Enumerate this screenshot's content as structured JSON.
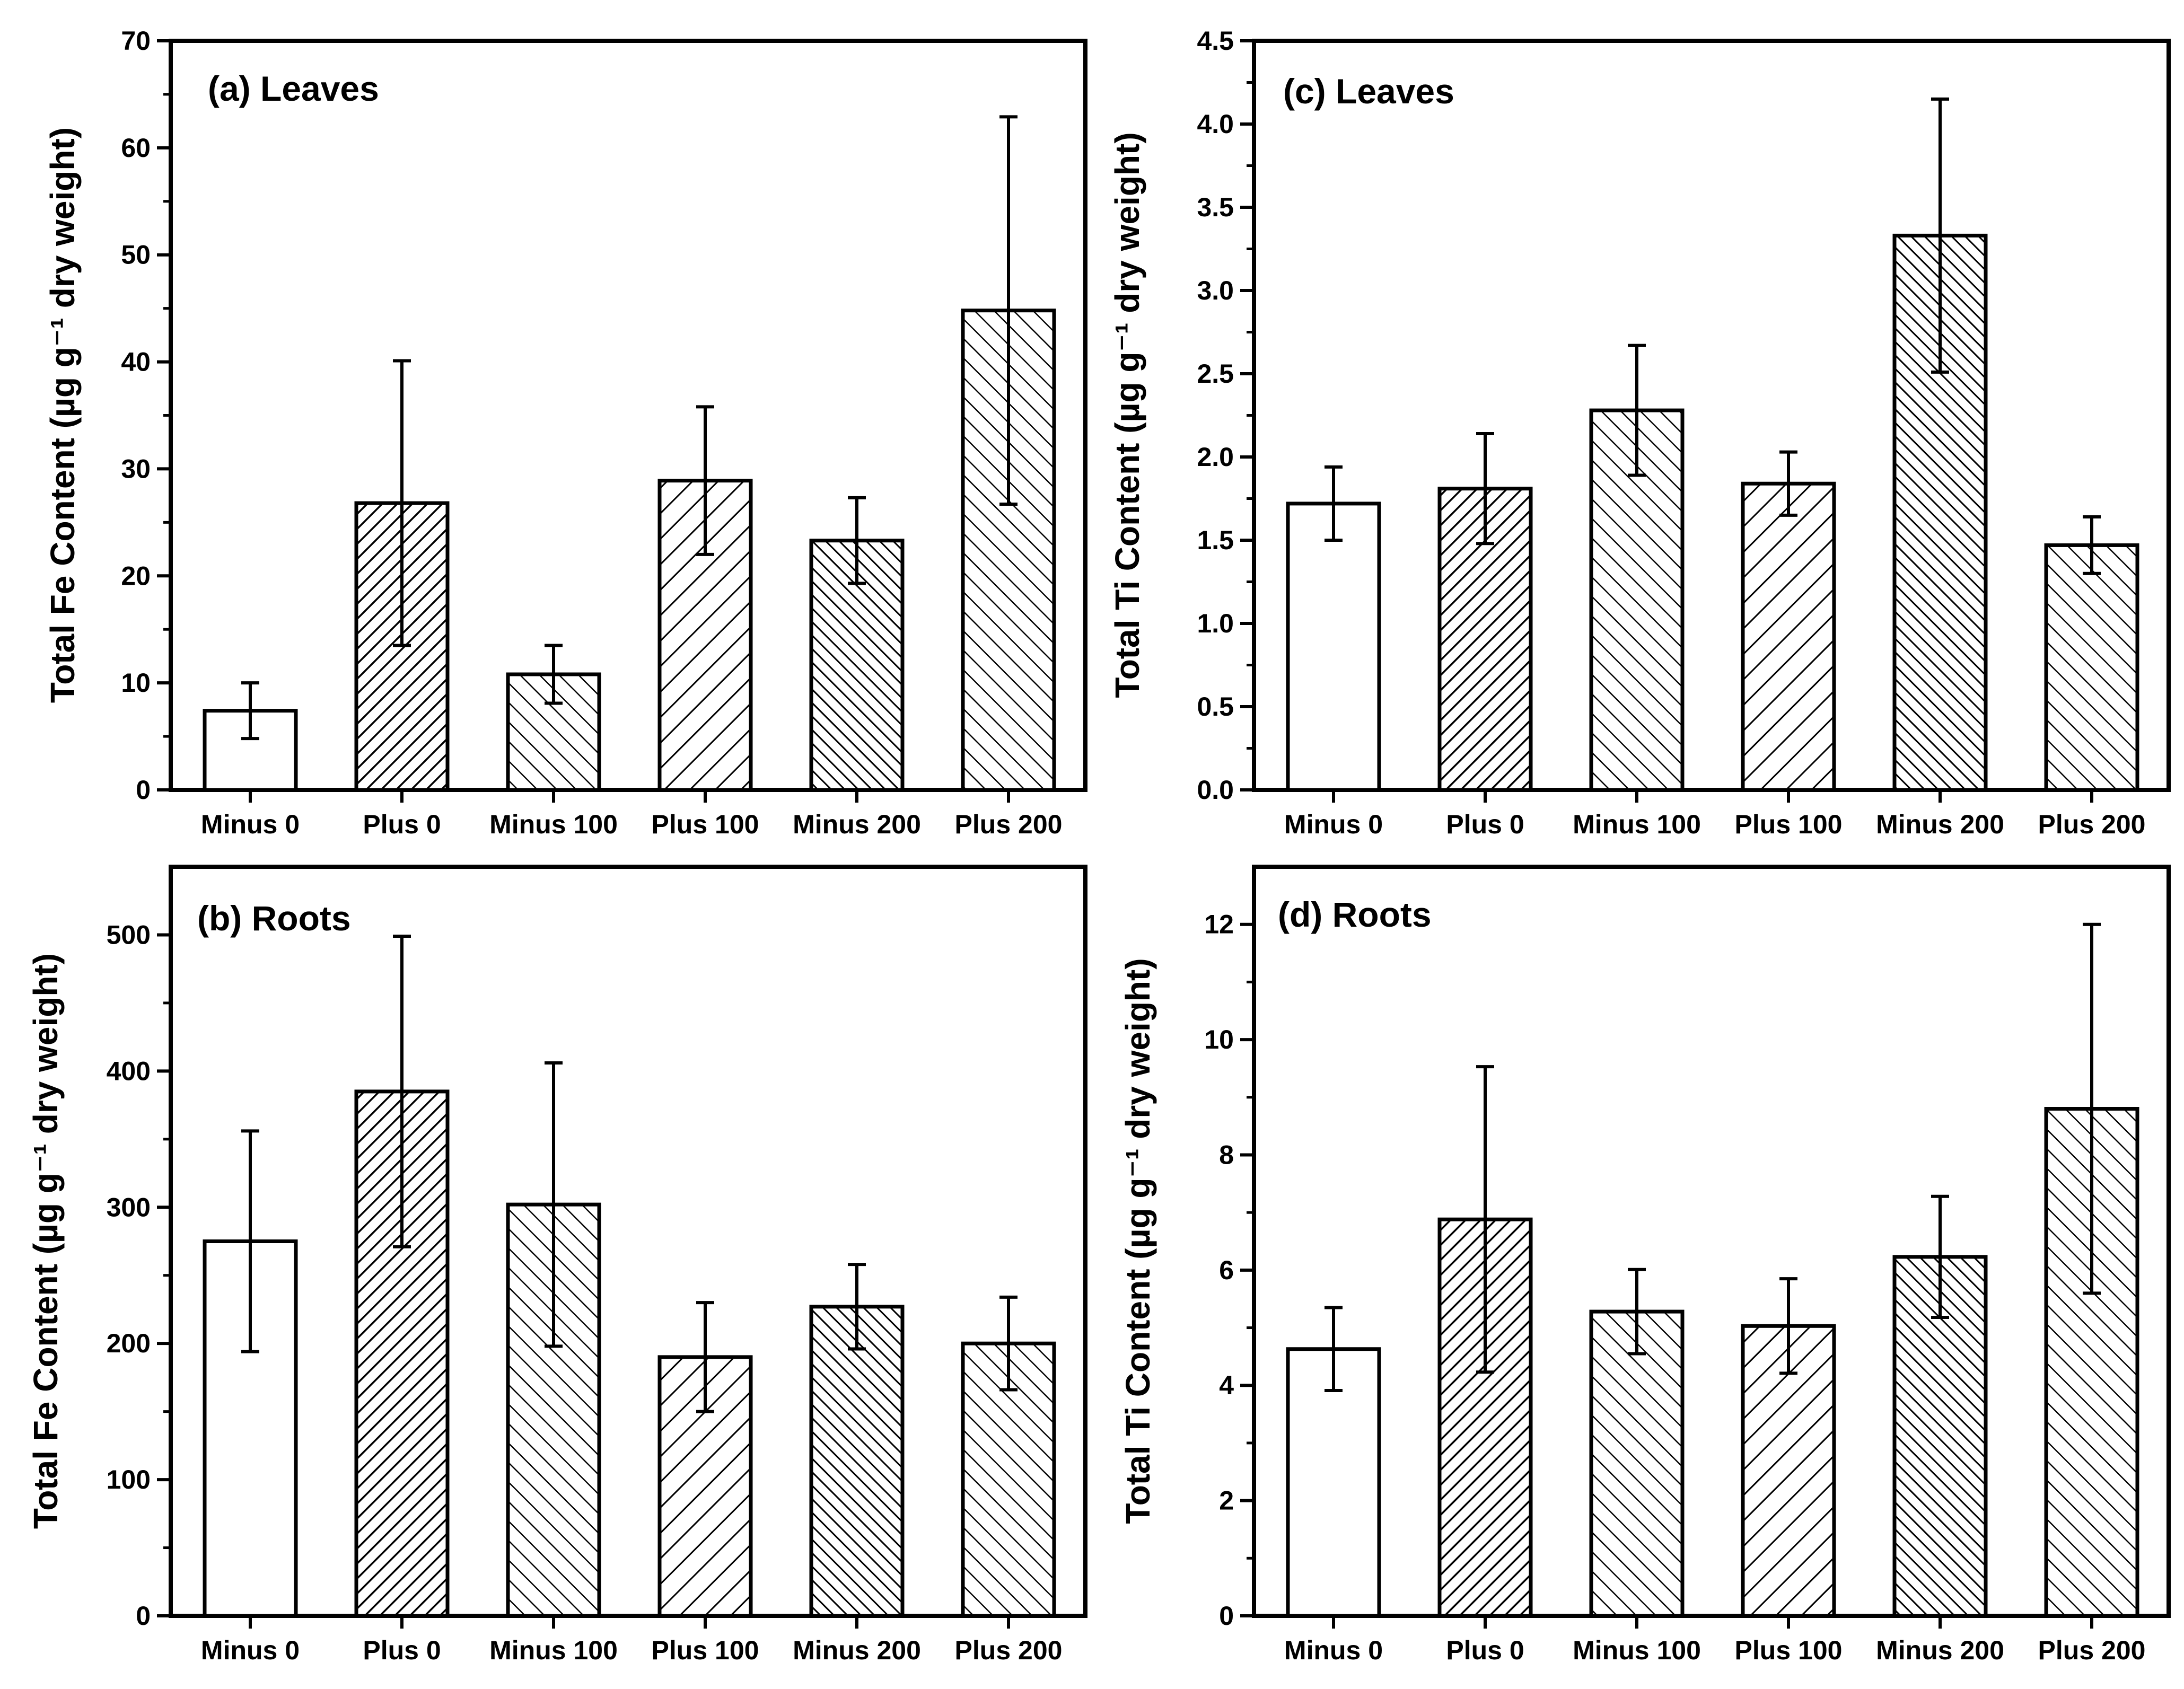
{
  "chart_data": [
    {
      "type": "bar",
      "title": "(a) Leaves",
      "ylabel": "Total Fe Content (µg g⁻¹ dry weight)",
      "categories": [
        "Minus 0",
        "Plus 0",
        "Minus 100",
        "Plus 100",
        "Minus 200",
        "Plus 200"
      ],
      "values": [
        7.4,
        26.8,
        10.8,
        28.9,
        23.3,
        44.8
      ],
      "errors": [
        2.6,
        13.3,
        2.7,
        6.9,
        4.0,
        18.1
      ],
      "ylim": [
        0,
        70
      ],
      "yticks": [
        0,
        10,
        20,
        30,
        40,
        50,
        60,
        70
      ],
      "ytick_labels": [
        "0",
        "10",
        "20",
        "30",
        "40",
        "50",
        "60",
        "70"
      ],
      "patterns": [
        "none",
        "fwd-dense",
        "back",
        "fwd",
        "back-dense",
        "back"
      ]
    },
    {
      "type": "bar",
      "title": "(b) Roots",
      "ylabel": "Total Fe Content (µg g⁻¹ dry weight)",
      "categories": [
        "Minus 0",
        "Plus 0",
        "Minus 100",
        "Plus 100",
        "Minus 200",
        "Plus 200"
      ],
      "values": [
        275,
        385,
        302,
        190,
        227,
        200
      ],
      "errors": [
        81,
        114,
        104,
        40,
        31,
        34
      ],
      "ylim": [
        0,
        550
      ],
      "yticks": [
        0,
        100,
        200,
        300,
        400,
        500
      ],
      "ytick_labels": [
        "0",
        "100",
        "200",
        "300",
        "400",
        "500"
      ],
      "patterns": [
        "none",
        "fwd-dense",
        "back",
        "fwd",
        "back-dense",
        "back"
      ]
    },
    {
      "type": "bar",
      "title": "(c) Leaves",
      "ylabel": "Total Ti Content (µg g⁻¹ dry weight)",
      "categories": [
        "Minus 0",
        "Plus 0",
        "Minus 100",
        "Plus 100",
        "Minus 200",
        "Plus 200"
      ],
      "values": [
        1.72,
        1.81,
        2.28,
        1.84,
        3.33,
        1.47
      ],
      "errors": [
        0.22,
        0.33,
        0.39,
        0.19,
        0.82,
        0.17
      ],
      "ylim": [
        0,
        4.5
      ],
      "yticks": [
        0,
        0.5,
        1,
        1.5,
        2,
        2.5,
        3,
        3.5,
        4,
        4.5
      ],
      "ytick_labels": [
        "0.0",
        "0.5",
        "1.0",
        "1.5",
        "2.0",
        "2.5",
        "3.0",
        "3.5",
        "4.0",
        "4.5"
      ],
      "patterns": [
        "none",
        "fwd-dense",
        "back",
        "fwd",
        "back-dense",
        "back"
      ]
    },
    {
      "type": "bar",
      "title": "(d) Roots",
      "ylabel": "Total Ti Content (µg g⁻¹ dry weight)",
      "categories": [
        "Minus 0",
        "Plus 0",
        "Minus 100",
        "Plus 100",
        "Minus 200",
        "Plus 200"
      ],
      "values": [
        4.63,
        6.88,
        5.28,
        5.03,
        6.23,
        8.8
      ],
      "errors": [
        0.72,
        2.65,
        0.73,
        0.82,
        1.05,
        3.2
      ],
      "ylim": [
        0,
        13
      ],
      "yticks": [
        0,
        2,
        4,
        6,
        8,
        10,
        12
      ],
      "ytick_labels": [
        "0",
        "2",
        "4",
        "6",
        "8",
        "10",
        "12"
      ],
      "patterns": [
        "none",
        "fwd-dense",
        "back",
        "fwd",
        "back-dense",
        "back"
      ]
    }
  ]
}
